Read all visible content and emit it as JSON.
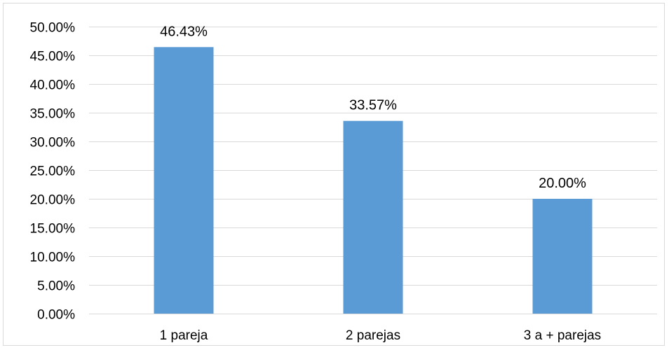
{
  "chart_data": {
    "type": "bar",
    "title": "",
    "xlabel": "",
    "ylabel": "",
    "categories": [
      "1 pareja",
      "2 parejas",
      "3 a + parejas"
    ],
    "values": [
      46.43,
      33.57,
      20.0
    ],
    "value_labels": [
      "46.43%",
      "33.57%",
      "20.00%"
    ],
    "ylim": [
      0,
      50
    ],
    "y_ticks": [
      0,
      5,
      10,
      15,
      20,
      25,
      30,
      35,
      40,
      45,
      50
    ],
    "y_tick_labels": [
      "0.00%",
      "5.00%",
      "10.00%",
      "15.00%",
      "20.00%",
      "25.00%",
      "30.00%",
      "35.00%",
      "40.00%",
      "45.00%",
      "50.00%"
    ],
    "grid": true,
    "legend": "none",
    "colors": {
      "bar": "#5b9bd5",
      "grid": "#d9d9d9",
      "text": "#000000"
    }
  }
}
